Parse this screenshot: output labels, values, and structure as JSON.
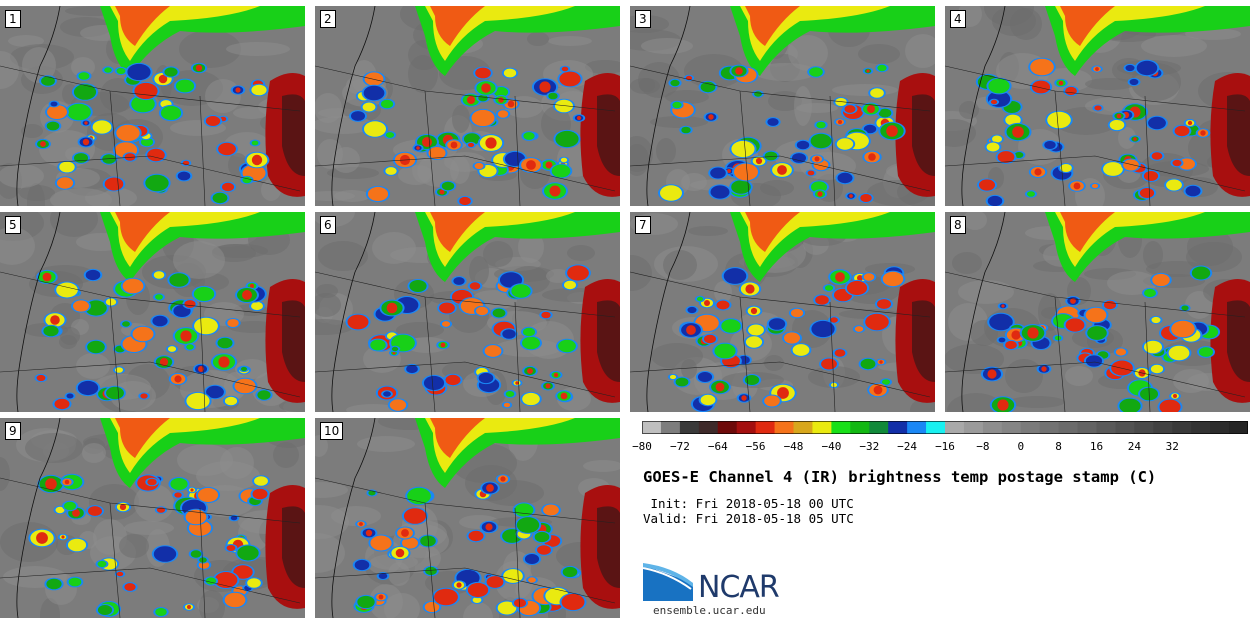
{
  "panels": [
    "1",
    "2",
    "3",
    "4",
    "5",
    "6",
    "7",
    "8",
    "9",
    "10"
  ],
  "colorbar": {
    "colors": [
      "#bfbfbf",
      "#7d7d7d",
      "#3a3a3a",
      "#3e2a2a",
      "#6e0a0a",
      "#a40f0f",
      "#e02a10",
      "#f5731a",
      "#d8a71c",
      "#eaea10",
      "#18e018",
      "#12b812",
      "#118a3a",
      "#122fa8",
      "#1a87f5",
      "#18f0f0",
      "#a9a9a9",
      "#9b9b9b",
      "#8e8e8e",
      "#858585",
      "#7b7b7b",
      "#727272",
      "#6b6b6b",
      "#636363",
      "#5a5a5a",
      "#525252",
      "#4a4a4a",
      "#424242",
      "#3a3a3a",
      "#333333",
      "#2c2c2c",
      "#252525"
    ],
    "ticks": [
      "−80",
      "−72",
      "−64",
      "−56",
      "−48",
      "−40",
      "−32",
      "−24",
      "−16",
      "−8",
      "0",
      "8",
      "16",
      "24",
      "32"
    ]
  },
  "title": "GOES-E Channel 4 (IR) brightness temp postage stamp (C)",
  "init": " Init: Fri 2018-05-18 00 UTC",
  "valid": "Valid: Fri 2018-05-18 05 UTC",
  "logo": {
    "text": "NCAR",
    "url": "ensemble.ucar.edu"
  }
}
